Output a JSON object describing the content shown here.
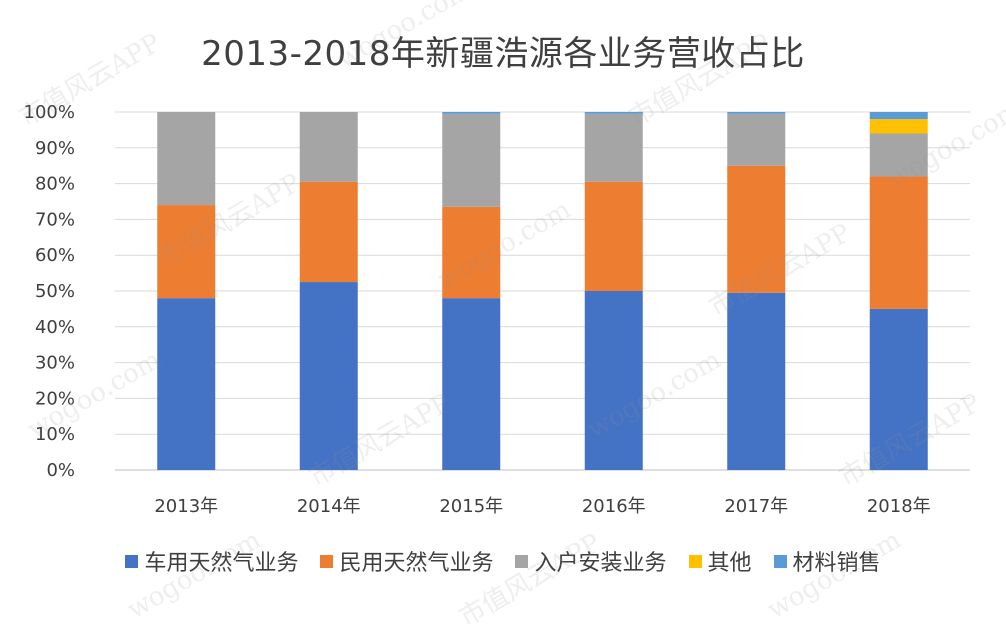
{
  "chart_data": {
    "type": "bar",
    "stacked": "percent",
    "title": "2013-2018年新疆浩源各业务营收占比",
    "categories": [
      "2013年",
      "2014年",
      "2015年",
      "2016年",
      "2017年",
      "2018年"
    ],
    "y_ticks": [
      "0%",
      "10%",
      "20%",
      "30%",
      "40%",
      "50%",
      "60%",
      "70%",
      "80%",
      "90%",
      "100%"
    ],
    "ylim": [
      0,
      100
    ],
    "series": [
      {
        "name": "车用天然气业务",
        "color": "#4472C4",
        "values": [
          48,
          52.5,
          48,
          50,
          49.5,
          45
        ]
      },
      {
        "name": "民用天然气业务",
        "color": "#ED7D31",
        "values": [
          26,
          28,
          25.5,
          30.5,
          35.5,
          37
        ]
      },
      {
        "name": "入户安装业务",
        "color": "#A5A5A5",
        "values": [
          26,
          19.5,
          26,
          19,
          14.5,
          12
        ]
      },
      {
        "name": "其他",
        "color": "#FFC000",
        "values": [
          0,
          0,
          0,
          0,
          0,
          4
        ]
      },
      {
        "name": "材料销售",
        "color": "#5B9BD5",
        "values": [
          0,
          0,
          0.5,
          0.5,
          0.5,
          2
        ]
      }
    ],
    "legend": "bottom"
  },
  "watermark": {
    "text_app": "市值风云APP",
    "text_site": "wogoo.com"
  }
}
